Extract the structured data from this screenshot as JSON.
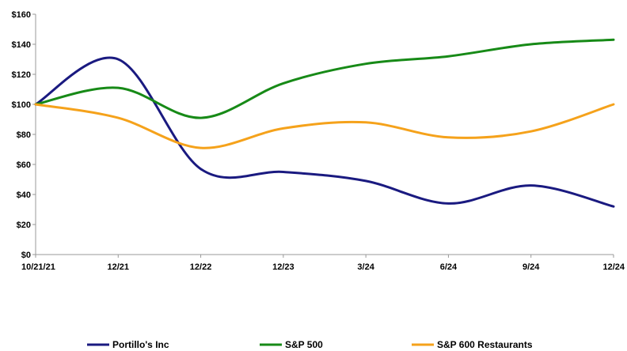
{
  "chart_data": {
    "type": "line",
    "title": "",
    "xlabel": "",
    "ylabel": "",
    "categories": [
      "10/21/21",
      "12/21",
      "12/22",
      "12/23",
      "3/24",
      "6/24",
      "9/24",
      "12/24"
    ],
    "y_tick_labels": [
      "$0",
      "$20",
      "$40",
      "$60",
      "$80",
      "$100",
      "$120",
      "$140",
      "$160"
    ],
    "ylim": [
      0,
      160
    ],
    "grid": false,
    "legend_position": "bottom",
    "series": [
      {
        "name": "Portillo's Inc",
        "color": "#1a1a80",
        "values": [
          100,
          130,
          57,
          55,
          49,
          34,
          46,
          32
        ]
      },
      {
        "name": "S&P 500",
        "color": "#178a17",
        "values": [
          100,
          111,
          91,
          114,
          127,
          132,
          140,
          143
        ]
      },
      {
        "name": "S&P 600 Restaurants",
        "color": "#f5a21b",
        "values": [
          100,
          91,
          71,
          84,
          88,
          78,
          82,
          100
        ]
      }
    ]
  }
}
